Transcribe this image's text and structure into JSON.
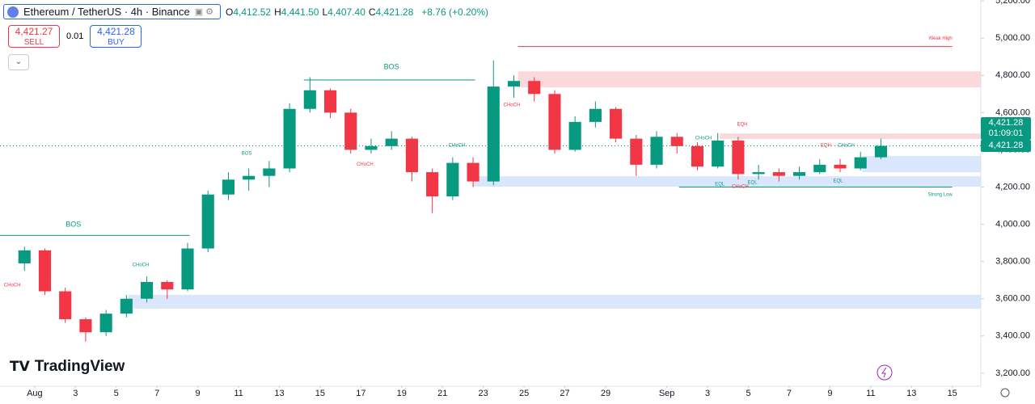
{
  "header": {
    "symbol": "Ethereum / TetherUS · 4h · Binance",
    "ohlc": [
      {
        "key": "O",
        "value": "4,412.52"
      },
      {
        "key": "H",
        "value": "4,441.50"
      },
      {
        "key": "L",
        "value": "4,407.40"
      },
      {
        "key": "C",
        "value": "4,421.28"
      }
    ],
    "change": "+8.76 (+0.20%)"
  },
  "trade": {
    "sell": {
      "price": "4,421.27",
      "label": "SELL"
    },
    "qty": "0.01",
    "buy": {
      "price": "4,421.28",
      "label": "BUY"
    }
  },
  "price_tag": {
    "price": "4,421.28",
    "countdown": "01:09:01"
  },
  "logo": "TradingView",
  "chart_data": {
    "type": "candlestick",
    "up_color": "#089981",
    "down_color": "#f23645",
    "xlim": [
      -1.7,
      46.4
    ],
    "ylim": [
      3130,
      5205
    ],
    "xticks": [
      {
        "value": 0,
        "label": "Aug"
      },
      {
        "value": 2,
        "label": "3"
      },
      {
        "value": 4,
        "label": "5"
      },
      {
        "value": 6,
        "label": "7"
      },
      {
        "value": 8,
        "label": "9"
      },
      {
        "value": 10,
        "label": "11"
      },
      {
        "value": 12,
        "label": "13"
      },
      {
        "value": 14,
        "label": "15"
      },
      {
        "value": 16,
        "label": "17"
      },
      {
        "value": 18,
        "label": "19"
      },
      {
        "value": 20,
        "label": "21"
      },
      {
        "value": 22,
        "label": "23"
      },
      {
        "value": 24,
        "label": "25"
      },
      {
        "value": 26,
        "label": "27"
      },
      {
        "value": 28,
        "label": "29"
      },
      {
        "value": 31,
        "label": "Sep"
      },
      {
        "value": 33,
        "label": "3"
      },
      {
        "value": 35,
        "label": "5"
      },
      {
        "value": 37,
        "label": "7"
      },
      {
        "value": 39,
        "label": "9"
      },
      {
        "value": 41,
        "label": "11"
      },
      {
        "value": 43,
        "label": "13"
      },
      {
        "value": 45,
        "label": "15"
      }
    ],
    "yticks": [
      {
        "value": 3200,
        "label": "3,200.00"
      },
      {
        "value": 3400,
        "label": "3,400.00"
      },
      {
        "value": 3600,
        "label": "3,600.00"
      },
      {
        "value": 3800,
        "label": "3,800.00"
      },
      {
        "value": 4000,
        "label": "4,000.00"
      },
      {
        "value": 4200,
        "label": "4,200.00"
      },
      {
        "value": 4400,
        "label": "4,400.00"
      },
      {
        "value": 4600,
        "label": "4,600.00"
      },
      {
        "value": 4800,
        "label": "4,800.00"
      },
      {
        "value": 5000,
        "label": "5,000.00"
      },
      {
        "value": 5200,
        "label": "5,200.00"
      }
    ],
    "grid": false,
    "x": [
      -0.5,
      0.5,
      1.5,
      2.5,
      3.5,
      4.5,
      5.5,
      6.5,
      7.5,
      8.5,
      9.5,
      10.5,
      11.5,
      12.5,
      13.5,
      14.5,
      15.5,
      16.5,
      17.5,
      18.5,
      19.5,
      20.5,
      21.5,
      22.5,
      23.5,
      24.5,
      25.5,
      26.5,
      27.5,
      28.5,
      29.5,
      30.5,
      31.5,
      32.5,
      33.5,
      34.5,
      35.5,
      36.5,
      37.5,
      38.5,
      39.5,
      40.5,
      41.5
    ],
    "open": [
      3790,
      3860,
      3640,
      3490,
      3420,
      3520,
      3600,
      3690,
      3650,
      3870,
      4160,
      4240,
      4260,
      4300,
      4620,
      4720,
      4600,
      4400,
      4420,
      4460,
      4280,
      4150,
      4330,
      4230,
      4740,
      4770,
      4700,
      4400,
      4550,
      4620,
      4460,
      4320,
      4470,
      4420,
      4310,
      4450,
      4270,
      4280,
      4260,
      4280,
      4320,
      4300,
      4360
    ],
    "high": [
      3880,
      3870,
      3660,
      3500,
      3540,
      3620,
      3720,
      3700,
      3900,
      4180,
      4280,
      4300,
      4340,
      4650,
      4790,
      4730,
      4620,
      4460,
      4500,
      4470,
      4300,
      4360,
      4360,
      4880,
      4800,
      4790,
      4720,
      4580,
      4660,
      4630,
      4480,
      4500,
      4490,
      4440,
      4490,
      4470,
      4320,
      4300,
      4310,
      4350,
      4350,
      4390,
      4460
    ],
    "low": [
      3750,
      3620,
      3470,
      3370,
      3400,
      3500,
      3580,
      3600,
      3640,
      3850,
      4130,
      4180,
      4200,
      4280,
      4600,
      4570,
      4380,
      4380,
      4400,
      4230,
      4060,
      4130,
      4200,
      4210,
      4680,
      4660,
      4380,
      4390,
      4520,
      4440,
      4260,
      4300,
      4380,
      4290,
      4300,
      4240,
      4240,
      4230,
      4240,
      4270,
      4280,
      4290,
      4350
    ],
    "close": [
      3860,
      3640,
      3490,
      3420,
      3520,
      3600,
      3690,
      3650,
      3870,
      4160,
      4240,
      4260,
      4300,
      4620,
      4720,
      4600,
      4400,
      4420,
      4460,
      4280,
      4150,
      4330,
      4230,
      4740,
      4770,
      4700,
      4400,
      4550,
      4620,
      4460,
      4320,
      4470,
      4420,
      4310,
      4450,
      4270,
      4280,
      4260,
      4280,
      4320,
      4300,
      4360,
      4421.28
    ],
    "zones": [
      {
        "from": 23.7,
        "to": 46.4,
        "low": 4735,
        "high": 4822,
        "color": "#f9d0d3"
      },
      {
        "from": 33.6,
        "to": 46.4,
        "low": 4458,
        "high": 4488,
        "color": "#f9d0d3"
      },
      {
        "from": 40.6,
        "to": 46.4,
        "low": 4280,
        "high": 4367,
        "color": "#cfe0fb"
      },
      {
        "from": 21.5,
        "to": 46.4,
        "low": 4202,
        "high": 4258,
        "color": "#cfe0fb"
      },
      {
        "from": 4.6,
        "to": 46.4,
        "low": 3547,
        "high": 3621,
        "color": "#cfe0fb"
      }
    ],
    "levels": [
      {
        "from": -1.7,
        "to": 7.6,
        "value": 3940,
        "color": "#089981"
      },
      {
        "from": 13.2,
        "to": 21.6,
        "value": 4775,
        "color": "#089981"
      },
      {
        "from": 23.7,
        "to": 45,
        "value": 4955,
        "color": "#f23645"
      },
      {
        "from": 31.6,
        "to": 45,
        "value": 4200,
        "color": "#089981"
      }
    ],
    "annotations": [
      {
        "text": "BOS",
        "x": 1.9,
        "y": 3998,
        "color": "#089981"
      },
      {
        "text": "BOS",
        "x": 17.5,
        "y": 4844,
        "color": "#089981"
      },
      {
        "text": "BOS",
        "x": 10.4,
        "y": 4380,
        "color": "#089981"
      },
      {
        "text": "CHoCH",
        "x": -1.1,
        "y": 3673,
        "color": "#f23645"
      },
      {
        "text": "CHoCH",
        "x": 5.2,
        "y": 3781,
        "color": "#089981"
      },
      {
        "text": "CHoCH",
        "x": 16.2,
        "y": 4323,
        "color": "#f23645"
      },
      {
        "text": "CHoCH",
        "x": 20.7,
        "y": 4423,
        "color": "#089981"
      },
      {
        "text": "CHoCH",
        "x": 23.4,
        "y": 4640,
        "color": "#f23645"
      },
      {
        "text": "CHoCH",
        "x": 32.8,
        "y": 4462,
        "color": "#089981"
      },
      {
        "text": "CHoCH",
        "x": 39.8,
        "y": 4423,
        "color": "#089981"
      },
      {
        "text": "CHoCH",
        "x": 34.6,
        "y": 4202,
        "color": "#f23645"
      },
      {
        "text": "EQH",
        "x": 34.7,
        "y": 4536,
        "color": "#f23645"
      },
      {
        "text": "EQH",
        "x": 38.8,
        "y": 4423,
        "color": "#f23645"
      },
      {
        "text": "EQL",
        "x": 33.6,
        "y": 4215,
        "color": "#089981"
      },
      {
        "text": "EQL",
        "x": 35.2,
        "y": 4224,
        "color": "#089981"
      },
      {
        "text": "EQL",
        "x": 39.4,
        "y": 4232,
        "color": "#089981"
      },
      {
        "text": "Weak High",
        "x": 45,
        "y": 5000,
        "color": "#f23645"
      },
      {
        "text": "Strong Low",
        "x": 45,
        "y": 4159,
        "color": "#089981"
      }
    ]
  }
}
